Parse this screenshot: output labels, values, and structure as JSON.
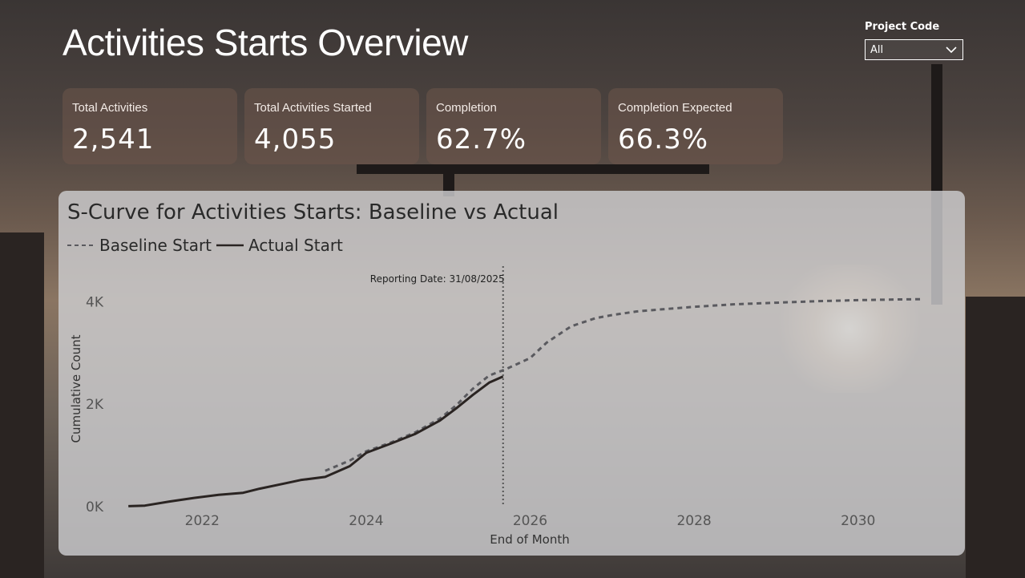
{
  "page": {
    "title": "Activities Starts Overview"
  },
  "filter": {
    "label": "Project Code",
    "value": "All"
  },
  "kpis": [
    {
      "label": "Total Activities",
      "value": "2,541"
    },
    {
      "label": "Total Activities Started",
      "value": "4,055"
    },
    {
      "label": "Completion",
      "value": "62.7%"
    },
    {
      "label": "Completion Expected",
      "value": "66.3%"
    }
  ],
  "chart": {
    "title": "S-Curve for Activities Starts: Baseline vs Actual",
    "legend": {
      "baseline": "Baseline Start",
      "actual": "Actual Start"
    },
    "annotation": "Reporting Date: 31/08/2025"
  },
  "chart_data": {
    "type": "line",
    "title": "S-Curve for Activities Starts: Baseline vs Actual",
    "xlabel": "End of Month",
    "ylabel": "Cumulative Count",
    "xlim": [
      2021.0,
      2031.0
    ],
    "ylim": [
      0,
      4600
    ],
    "x_ticks": [
      {
        "value": 2022,
        "label": "2022"
      },
      {
        "value": 2024,
        "label": "2024"
      },
      {
        "value": 2026,
        "label": "2026"
      },
      {
        "value": 2028,
        "label": "2028"
      },
      {
        "value": 2030,
        "label": "2030"
      }
    ],
    "y_ticks": [
      {
        "value": 0,
        "label": "0K"
      },
      {
        "value": 2000,
        "label": "2K"
      },
      {
        "value": 4000,
        "label": "4K"
      }
    ],
    "reporting_date": 2025.67,
    "grid": false,
    "legend_position": "top-left",
    "series": [
      {
        "name": "Baseline Start",
        "style": "dashed",
        "color": "#5a5a5f",
        "points": [
          [
            2023.5,
            700
          ],
          [
            2023.8,
            900
          ],
          [
            2024.0,
            1080
          ],
          [
            2024.3,
            1250
          ],
          [
            2024.6,
            1450
          ],
          [
            2024.9,
            1720
          ],
          [
            2025.1,
            1980
          ],
          [
            2025.3,
            2300
          ],
          [
            2025.5,
            2560
          ],
          [
            2025.7,
            2680
          ],
          [
            2026.0,
            2900
          ],
          [
            2026.2,
            3200
          ],
          [
            2026.5,
            3520
          ],
          [
            2026.8,
            3680
          ],
          [
            2027.0,
            3740
          ],
          [
            2027.3,
            3810
          ],
          [
            2027.6,
            3850
          ],
          [
            2028.0,
            3900
          ],
          [
            2028.5,
            3950
          ],
          [
            2029.0,
            3980
          ],
          [
            2029.5,
            4010
          ],
          [
            2030.0,
            4030
          ],
          [
            2030.5,
            4045
          ],
          [
            2030.8,
            4050
          ]
        ]
      },
      {
        "name": "Actual Start",
        "style": "solid",
        "color": "#2a2422",
        "points": [
          [
            2021.1,
            10
          ],
          [
            2021.3,
            20
          ],
          [
            2021.6,
            100
          ],
          [
            2021.9,
            170
          ],
          [
            2022.2,
            230
          ],
          [
            2022.5,
            270
          ],
          [
            2022.7,
            350
          ],
          [
            2023.0,
            450
          ],
          [
            2023.2,
            520
          ],
          [
            2023.5,
            580
          ],
          [
            2023.8,
            790
          ],
          [
            2024.0,
            1050
          ],
          [
            2024.3,
            1230
          ],
          [
            2024.6,
            1420
          ],
          [
            2024.9,
            1680
          ],
          [
            2025.1,
            1920
          ],
          [
            2025.3,
            2180
          ],
          [
            2025.5,
            2420
          ],
          [
            2025.67,
            2541
          ]
        ]
      }
    ]
  }
}
